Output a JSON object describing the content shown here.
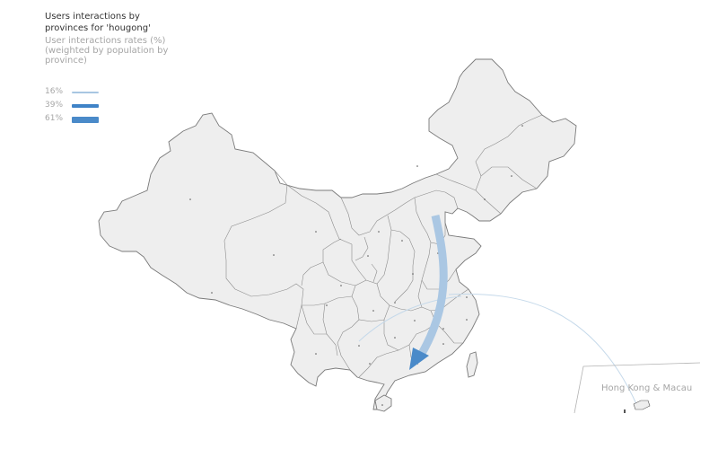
{
  "title": "Users interactions by provinces for 'hougong'",
  "subtitle": "User interactions rates (%) (weighted by population by province)",
  "legend": [
    {
      "label": "16%",
      "rate": 16
    },
    {
      "label": "39%",
      "rate": 39
    },
    {
      "label": "61%",
      "rate": 61
    }
  ],
  "inset": {
    "label": "Hong Kong & Macau"
  },
  "colors": {
    "land": "#eeeeee",
    "border": "#8c8c8c",
    "flow": "#4a8ac9",
    "flow_light": "#a8c6e2",
    "thin_flow": "#c5d9ea"
  }
}
